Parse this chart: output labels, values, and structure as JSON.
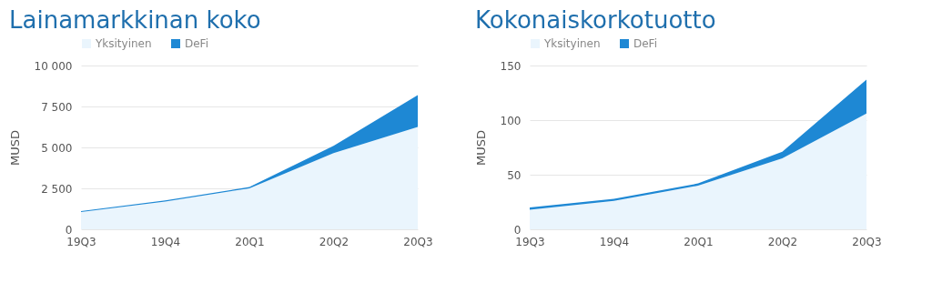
{
  "chart_data": [
    {
      "type": "area",
      "title": "Lainamarkkinan koko",
      "ylabel": "MUSD",
      "categories": [
        "19Q3",
        "19Q4",
        "20Q1",
        "20Q2",
        "20Q3"
      ],
      "stacked": true,
      "legend": "top",
      "grid": "y",
      "ylim": [
        0,
        10000
      ],
      "yticks": [
        0,
        {
          "value": 2500,
          "label": "2 500"
        },
        {
          "value": 5000,
          "label": "5 000"
        },
        {
          "value": 7500,
          "label": "7 500"
        },
        {
          "value": 10000,
          "label": "10 000"
        }
      ],
      "series": [
        {
          "name": "Yksityinen",
          "color": "#eaf5fd",
          "values": [
            1050,
            1700,
            2500,
            4650,
            6250
          ]
        },
        {
          "name": "DeFi",
          "color": "#1e88d4",
          "values": [
            60,
            60,
            80,
            450,
            1950
          ]
        }
      ]
    },
    {
      "type": "area",
      "title": "Kokonaiskorkotuotto",
      "ylabel": "MUSD",
      "categories": [
        "19Q3",
        "19Q4",
        "20Q1",
        "20Q2",
        "20Q3"
      ],
      "stacked": true,
      "legend": "top",
      "grid": "y",
      "ylim": [
        0,
        150
      ],
      "yticks": [
        0,
        50,
        100,
        150
      ],
      "series": [
        {
          "name": "Yksityinen",
          "color": "#eaf5fd",
          "values": [
            18,
            26,
            40,
            65,
            106
          ]
        },
        {
          "name": "DeFi",
          "color": "#1e88d4",
          "values": [
            2,
            2,
            2,
            6,
            31
          ]
        }
      ]
    }
  ]
}
